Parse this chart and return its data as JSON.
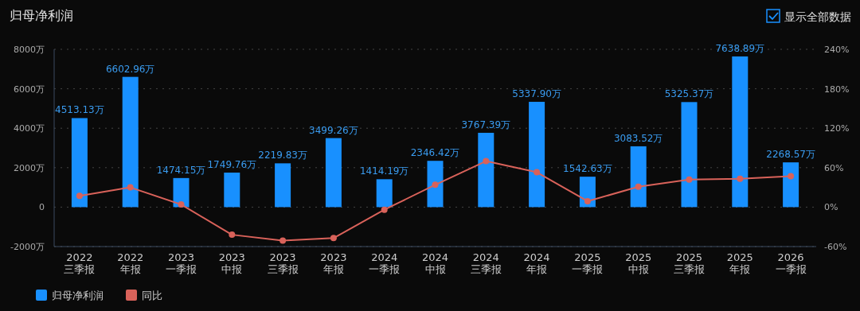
{
  "chart_data": {
    "type": "bar",
    "title": "归母净利润",
    "annotations": [
      "显示全部数据"
    ],
    "categories": [
      "2022\n三季报",
      "2022\n年报",
      "2023\n一季报",
      "2023\n中报",
      "2023\n三季报",
      "2023\n年报",
      "2024\n一季报",
      "2024\n中报",
      "2024\n三季报",
      "2024\n年报",
      "2025\n一季报",
      "2025\n中报",
      "2025\n三季报",
      "2025\n年报",
      "2026\n一季报"
    ],
    "series": [
      {
        "name": "归母净利润",
        "color": "#1890ff",
        "values": [
          4513.13,
          6602.96,
          1474.15,
          1749.76,
          2219.83,
          3499.26,
          1414.19,
          2346.42,
          3767.39,
          5337.9,
          1542.63,
          3083.52,
          5325.37,
          7638.89,
          2268.57
        ],
        "value_labels": [
          "4513.13万",
          "6602.96万",
          "1474.15万",
          "1749.76万",
          "2219.83万",
          "3499.26万",
          "1414.19万",
          "2346.42万",
          "3767.39万",
          "5337.90万",
          "1542.63万",
          "3083.52万",
          "5325.37万",
          "7638.89万",
          "2268.57万"
        ]
      },
      {
        "name": "同比",
        "type": "line",
        "axis": "y2",
        "color": "#d9625a",
        "marker": "circle",
        "values": [
          17,
          30,
          4,
          -42,
          -51,
          -47,
          -4,
          34,
          70,
          53,
          9,
          31,
          42,
          43,
          47
        ]
      }
    ],
    "ylim": [
      -2000,
      8000
    ],
    "yticks": [
      {
        "value": -2000,
        "label": "-2000万"
      },
      {
        "value": 0,
        "label": "0"
      },
      {
        "value": 2000,
        "label": "2000万"
      },
      {
        "value": 4000,
        "label": "4000万"
      },
      {
        "value": 6000,
        "label": "6000万"
      },
      {
        "value": 8000,
        "label": "8000万"
      }
    ],
    "y2lim": [
      -60,
      240
    ],
    "y2ticks": [
      {
        "value": -60,
        "label": "-60%"
      },
      {
        "value": 0,
        "label": "0%"
      },
      {
        "value": 60,
        "label": "60%"
      },
      {
        "value": 120,
        "label": "120%"
      },
      {
        "value": 180,
        "label": "180%"
      },
      {
        "value": 240,
        "label": "240%"
      }
    ],
    "grid": "y",
    "legend": "bottom left"
  }
}
